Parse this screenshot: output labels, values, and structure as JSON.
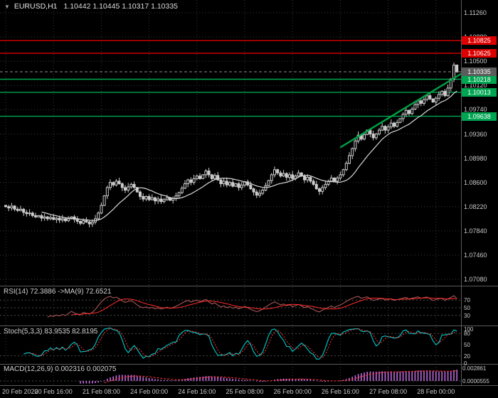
{
  "header": {
    "dropdown_icon": "▼",
    "symbol": "EURUSD,H1",
    "ohlc": "1.10442 1.10445 1.10317 1.10335"
  },
  "colors": {
    "background": "#000000",
    "grid": "#3a3a3a",
    "panel_separator": "#5a5a5a",
    "candle": "#cccccc",
    "ma": "#d8d8d8",
    "resistance": "#dd0000",
    "support": "#00a551",
    "trend": "#00a045",
    "current_badge": "#5c5c5c",
    "rsi_line": "#aa5555",
    "rsi_signal": "#ff2a2a",
    "stoch_main": "#00cccc",
    "stoch_signal": "#ff3333",
    "macd_hist": "#c26ae0",
    "macd_signal": "#ff3333",
    "axis_text": "#c9c9c9"
  },
  "indicators": {
    "rsi": {
      "label": "RSI(14) 72.3886 ->MA(9) 72.6521",
      "period": 14,
      "ma_period": 9,
      "value": 72.3886,
      "ma_value": 72.6521,
      "levels": [
        70,
        50,
        30
      ],
      "ticks": [
        {
          "v": 70,
          "t": "70"
        },
        {
          "v": 50,
          "t": "50"
        },
        {
          "v": 30,
          "t": "30"
        }
      ]
    },
    "stoch": {
      "label": "Stoch(5,3,3) 83.9535 82.8195",
      "params": "5,3,3",
      "value": 83.9535,
      "signal_value": 82.8195,
      "levels": [
        80,
        20
      ],
      "ticks": [
        {
          "v": 100,
          "t": "100"
        },
        {
          "v": 80,
          "t": "80"
        },
        {
          "v": 50,
          "t": "50"
        },
        {
          "v": 20,
          "t": "20"
        },
        {
          "v": 0,
          "t": "0"
        }
      ]
    },
    "macd": {
      "label": "MACD(12,26,9) 0.002316 0.002075",
      "params": "12,26,9",
      "value": 0.002316,
      "signal_value": 0.002075,
      "levels": [
        0
      ],
      "ticks": [
        {
          "v": 0.002861,
          "t": "0.002861"
        },
        {
          "v": 5.55e-05,
          "t": "0.0000555"
        }
      ]
    }
  },
  "chart_data": {
    "type": "candlestick",
    "symbol": "EURUSD",
    "timeframe": "H1",
    "current_bar": {
      "open": 1.10442,
      "high": 1.10445,
      "low": 1.10317,
      "close": 1.10335
    },
    "price_axis_ticks": [
      "1.11260",
      "1.10880",
      "1.10500",
      "1.10120",
      "1.09740",
      "1.09360",
      "1.08980",
      "1.08600",
      "1.08220",
      "1.07840",
      "1.07460",
      "1.07080"
    ],
    "levels": {
      "resistance": [
        "1.10825",
        "1.10625"
      ],
      "support": [
        "1.10218",
        "1.10013",
        "1.09638"
      ],
      "current_price": "1.10335"
    },
    "trendline": {
      "from": {
        "index": 112,
        "price": 1.0915
      },
      "to": {
        "index": 153,
        "price": 1.1032
      }
    },
    "time_labels": [
      {
        "i": 0,
        "t": "20 Feb 2020"
      },
      {
        "i": 16,
        "t": "20 Feb 16:00"
      },
      {
        "i": 32,
        "t": "21 Feb 08:00"
      },
      {
        "i": 48,
        "t": "24 Feb 00:00"
      },
      {
        "i": 64,
        "t": "24 Feb 16:00"
      },
      {
        "i": 80,
        "t": "25 Feb 08:00"
      },
      {
        "i": 96,
        "t": "26 Feb 00:00"
      },
      {
        "i": 112,
        "t": "26 Feb 16:00"
      },
      {
        "i": 128,
        "t": "27 Feb 08:00"
      },
      {
        "i": 144,
        "t": "28 Feb 00:00"
      }
    ],
    "closes_pips": [
      822,
      820,
      823,
      818,
      816,
      818,
      813,
      811,
      812,
      808,
      806,
      808,
      804,
      806,
      803,
      805,
      802,
      804,
      801,
      803,
      800,
      803,
      806,
      802,
      799,
      796,
      800,
      798,
      795,
      798,
      803,
      812,
      824,
      839,
      852,
      860,
      856,
      862,
      858,
      852,
      848,
      853,
      857,
      852,
      845,
      838,
      834,
      838,
      833,
      836,
      831,
      834,
      830,
      833,
      836,
      832,
      835,
      839,
      844,
      851,
      858,
      864,
      860,
      866,
      870,
      866,
      872,
      878,
      872,
      866,
      871,
      864,
      858,
      862,
      856,
      860,
      854,
      858,
      852,
      856,
      861,
      856,
      850,
      845,
      840,
      843,
      848,
      855,
      863,
      872,
      880,
      875,
      870,
      874,
      868,
      872,
      866,
      870,
      875,
      870,
      864,
      868,
      862,
      857,
      850,
      846,
      852,
      857,
      862,
      867,
      862,
      867,
      872,
      880,
      890,
      902,
      913,
      925,
      934,
      928,
      935,
      942,
      936,
      930,
      936,
      942,
      948,
      942,
      947,
      953,
      948,
      954,
      960,
      967,
      973,
      968,
      975,
      982,
      988,
      984,
      990,
      996,
      991,
      986,
      992,
      998,
      1003,
      996,
      1008,
      1022,
      1044,
      1033.5
    ]
  }
}
